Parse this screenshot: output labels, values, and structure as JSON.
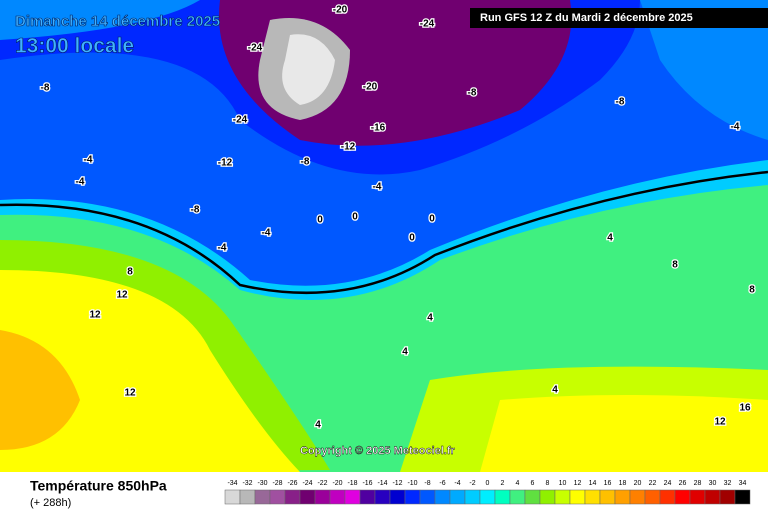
{
  "header": {
    "date": "Dimanche 14 décembre 2025",
    "time": "13:00 locale",
    "run": "Run GFS 12 Z du Mardi 2 décembre 2025"
  },
  "copyright": "Copyright © 2025 Meteociel.fr",
  "footer": {
    "title": "Température 850hPa",
    "lead": "(+ 288h)"
  },
  "map_labels": [
    "-20",
    "-24",
    "-24",
    "-20",
    "-24",
    "-16",
    "-12",
    "-12",
    "-8",
    "-8",
    "-8",
    "-4",
    "-8",
    "-4",
    "-4",
    "0",
    "0",
    "0",
    "-4",
    "-4",
    "4",
    "4",
    "4",
    "4",
    "8",
    "12",
    "12",
    "12",
    "4",
    "8",
    "8",
    "12",
    "16",
    "-8",
    "-4",
    "0"
  ],
  "legend": {
    "items": [
      {
        "value": -34,
        "color": "#d8d8d8"
      },
      {
        "value": -32,
        "color": "#b8b8b8"
      },
      {
        "value": -30,
        "color": "#986898"
      },
      {
        "value": -28,
        "color": "#a050a0"
      },
      {
        "value": -26,
        "color": "#882088"
      },
      {
        "value": -24,
        "color": "#700070"
      },
      {
        "value": -22,
        "color": "#9a009a"
      },
      {
        "value": -20,
        "color": "#c000c0"
      },
      {
        "value": -18,
        "color": "#e000e0"
      },
      {
        "value": -16,
        "color": "#5000a0"
      },
      {
        "value": -14,
        "color": "#2800c0"
      },
      {
        "value": -12,
        "color": "#0000d0"
      },
      {
        "value": -10,
        "color": "#0028ff"
      },
      {
        "value": -8,
        "color": "#0058ff"
      },
      {
        "value": -6,
        "color": "#0088ff"
      },
      {
        "value": -4,
        "color": "#00aaff"
      },
      {
        "value": -2,
        "color": "#00ccff"
      },
      {
        "value": 0,
        "color": "#00eeff"
      },
      {
        "value": 2,
        "color": "#00ffc0"
      },
      {
        "value": 4,
        "color": "#40f080"
      },
      {
        "value": 6,
        "color": "#60e040"
      },
      {
        "value": 8,
        "color": "#90f000"
      },
      {
        "value": 10,
        "color": "#c8ff00"
      },
      {
        "value": 12,
        "color": "#ffff00"
      },
      {
        "value": 14,
        "color": "#ffe000"
      },
      {
        "value": 16,
        "color": "#ffc000"
      },
      {
        "value": 18,
        "color": "#ffa000"
      },
      {
        "value": 20,
        "color": "#ff8000"
      },
      {
        "value": 22,
        "color": "#ff6000"
      },
      {
        "value": 24,
        "color": "#ff3000"
      },
      {
        "value": 26,
        "color": "#ff0000"
      },
      {
        "value": 28,
        "color": "#e00000"
      },
      {
        "value": 30,
        "color": "#c00000"
      },
      {
        "value": 32,
        "color": "#a00000"
      },
      {
        "value": 34,
        "color": "#000000"
      }
    ]
  }
}
